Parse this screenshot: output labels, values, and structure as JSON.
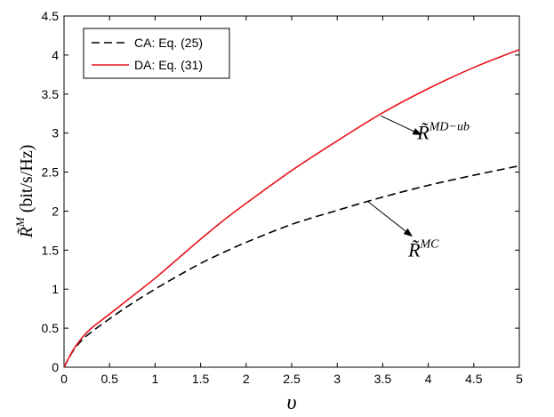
{
  "chart_data": {
    "type": "line",
    "xlabel": "υ",
    "ylabel": "R̃ᴹ (bit/s/Hz)",
    "ylabel_main": "R̃",
    "ylabel_sup": "M",
    "ylabel_unit": " (bit/s/Hz)",
    "xlim": [
      0,
      5
    ],
    "ylim": [
      0,
      4.5
    ],
    "xticks": [
      0,
      0.5,
      1,
      1.5,
      2,
      2.5,
      3,
      3.5,
      4,
      4.5,
      5
    ],
    "xtick_labels": [
      "0",
      "0.5",
      "1",
      "1.5",
      "2",
      "2.5",
      "3",
      "3.5",
      "4",
      "4.5",
      "5"
    ],
    "yticks": [
      0,
      0.5,
      1,
      1.5,
      2,
      2.5,
      3,
      3.5,
      4,
      4.5
    ],
    "ytick_labels": [
      "0",
      "0.5",
      "1",
      "1.5",
      "2",
      "2.5",
      "3",
      "3.5",
      "4",
      "4.5"
    ],
    "grid": false,
    "legend_position": "top-left",
    "series": [
      {
        "name": "CA: Eq. (25)",
        "style": "dashed",
        "color": "#000000",
        "x": [
          0,
          0.1,
          0.2,
          0.3,
          0.5,
          0.75,
          1,
          1.25,
          1.5,
          1.75,
          2,
          2.5,
          3,
          3.5,
          4,
          4.5,
          5
        ],
        "y": [
          0,
          0.21,
          0.35,
          0.45,
          0.62,
          0.82,
          1.0,
          1.17,
          1.33,
          1.47,
          1.6,
          1.83,
          2.01,
          2.18,
          2.33,
          2.46,
          2.58
        ]
      },
      {
        "name": "DA: Eq. (31)",
        "style": "solid",
        "color": "#e8141b",
        "x": [
          0,
          0.1,
          0.2,
          0.3,
          0.5,
          0.75,
          1,
          1.25,
          1.5,
          1.75,
          2,
          2.5,
          3,
          3.5,
          4,
          4.5,
          5
        ],
        "y": [
          0,
          0.22,
          0.38,
          0.5,
          0.68,
          0.91,
          1.14,
          1.39,
          1.64,
          1.88,
          2.1,
          2.52,
          2.9,
          3.26,
          3.57,
          3.84,
          4.07
        ]
      }
    ],
    "annotations": [
      {
        "id": "md-ub",
        "main": "R̃",
        "sup": "MD−ub",
        "arrow_from": [
          3.48,
          3.22
        ],
        "arrow_to": [
          3.92,
          2.98
        ],
        "text_at": [
          3.88,
          2.92
        ]
      },
      {
        "id": "mc",
        "main": "R̃",
        "sup": "MC",
        "arrow_from": [
          3.34,
          2.12
        ],
        "arrow_to": [
          3.82,
          1.68
        ],
        "text_at": [
          3.78,
          1.42
        ]
      }
    ]
  }
}
